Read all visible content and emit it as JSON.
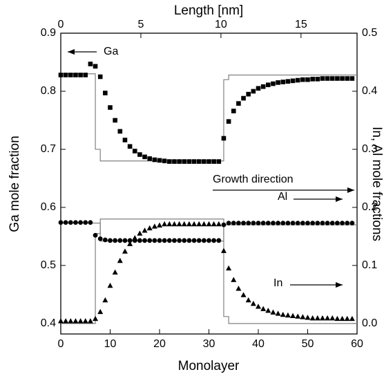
{
  "chart_data": {
    "type": "scatter",
    "title_top": "Length [nm]",
    "xlabel": "Monolayer",
    "ylabel": "Ga mole fraction",
    "y2label": "In, Al mole fractions",
    "annotations": [
      "Ga",
      "Growth direction",
      "Al",
      "In"
    ],
    "xlim": [
      0,
      60
    ],
    "xticks": [
      0,
      10,
      20,
      30,
      40,
      50,
      60
    ],
    "x2lim": [
      0,
      18.5
    ],
    "x2ticks": [
      0,
      5,
      10,
      15
    ],
    "ylim": [
      0.382,
      0.9
    ],
    "yticks": [
      0.4,
      0.5,
      0.6,
      0.7,
      0.8,
      0.9
    ],
    "y2lim": [
      -0.018,
      0.5
    ],
    "y2ticks": [
      {
        "value": 0,
        "label": "0.0"
      },
      0.1,
      0.2,
      0.3,
      0.4,
      0.5
    ],
    "x": [
      0,
      1,
      2,
      3,
      4,
      5,
      6,
      7,
      8,
      9,
      10,
      11,
      12,
      13,
      14,
      15,
      16,
      17,
      18,
      19,
      20,
      21,
      22,
      23,
      24,
      25,
      26,
      27,
      28,
      29,
      30,
      31,
      32,
      33,
      34,
      35,
      36,
      37,
      38,
      39,
      40,
      41,
      42,
      43,
      44,
      45,
      46,
      47,
      48,
      49,
      50,
      51,
      52,
      53,
      54,
      55,
      56,
      57,
      58,
      59
    ],
    "series": [
      {
        "marker": "square",
        "axis": "y",
        "color": "#000000",
        "values": [
          0.828,
          0.828,
          0.828,
          0.828,
          0.828,
          0.828,
          0.847,
          0.843,
          0.825,
          0.797,
          0.772,
          0.75,
          0.731,
          0.716,
          0.705,
          0.697,
          0.691,
          0.687,
          0.684,
          0.682,
          0.681,
          0.68,
          0.679,
          0.679,
          0.679,
          0.679,
          0.679,
          0.679,
          0.679,
          0.679,
          0.679,
          0.679,
          0.679,
          0.719,
          0.748,
          0.766,
          0.779,
          0.788,
          0.795,
          0.8,
          0.805,
          0.808,
          0.811,
          0.813,
          0.815,
          0.816,
          0.817,
          0.818,
          0.819,
          0.82,
          0.82,
          0.821,
          0.821,
          0.822,
          0.822,
          0.822,
          0.822,
          0.822,
          0.822,
          0.822
        ]
      },
      {
        "marker": "circle",
        "axis": "y2",
        "color": "#000000",
        "values": [
          0.174,
          0.174,
          0.174,
          0.174,
          0.174,
          0.174,
          0.174,
          0.152,
          0.146,
          0.144,
          0.143,
          0.143,
          0.143,
          0.143,
          0.143,
          0.143,
          0.143,
          0.143,
          0.143,
          0.143,
          0.143,
          0.143,
          0.143,
          0.143,
          0.143,
          0.143,
          0.143,
          0.143,
          0.143,
          0.143,
          0.143,
          0.143,
          0.143,
          0.17,
          0.173,
          0.173,
          0.173,
          0.173,
          0.173,
          0.173,
          0.173,
          0.173,
          0.173,
          0.173,
          0.173,
          0.173,
          0.173,
          0.173,
          0.173,
          0.173,
          0.173,
          0.173,
          0.173,
          0.173,
          0.173,
          0.173,
          0.173,
          0.173,
          0.173,
          0.173
        ]
      },
      {
        "marker": "triangle",
        "axis": "y2",
        "color": "#000000",
        "values": [
          0.004,
          0.004,
          0.004,
          0.004,
          0.004,
          0.004,
          0.004,
          0.008,
          0.02,
          0.04,
          0.065,
          0.088,
          0.108,
          0.124,
          0.137,
          0.147,
          0.155,
          0.16,
          0.164,
          0.167,
          0.169,
          0.171,
          0.171,
          0.171,
          0.171,
          0.171,
          0.171,
          0.171,
          0.171,
          0.171,
          0.171,
          0.171,
          0.171,
          0.125,
          0.095,
          0.075,
          0.06,
          0.049,
          0.04,
          0.034,
          0.029,
          0.025,
          0.022,
          0.019,
          0.017,
          0.015,
          0.014,
          0.013,
          0.012,
          0.011,
          0.01,
          0.009,
          0.009,
          0.009,
          0.009,
          0.009,
          0.008,
          0.008,
          0.008,
          0.008
        ]
      }
    ],
    "lines": [
      {
        "axis": "y",
        "color": "#808080",
        "x": [
          0,
          7,
          7,
          8,
          8,
          33,
          33,
          34,
          34,
          60
        ],
        "values": [
          0.83,
          0.83,
          0.7,
          0.7,
          0.68,
          0.68,
          0.82,
          0.82,
          0.828,
          0.828
        ]
      },
      {
        "axis": "y2",
        "color": "#808080",
        "x": [
          0,
          8,
          8,
          33,
          33,
          60
        ],
        "values": [
          0.173,
          0.173,
          0.142,
          0.142,
          0.17,
          0.17
        ]
      },
      {
        "axis": "y2",
        "color": "#808080",
        "x": [
          0,
          7,
          7,
          8,
          8,
          33,
          33,
          34,
          34,
          60
        ],
        "values": [
          0.0,
          0.0,
          0.155,
          0.155,
          0.18,
          0.18,
          0.012,
          0.012,
          0.0,
          0.0
        ]
      }
    ]
  }
}
